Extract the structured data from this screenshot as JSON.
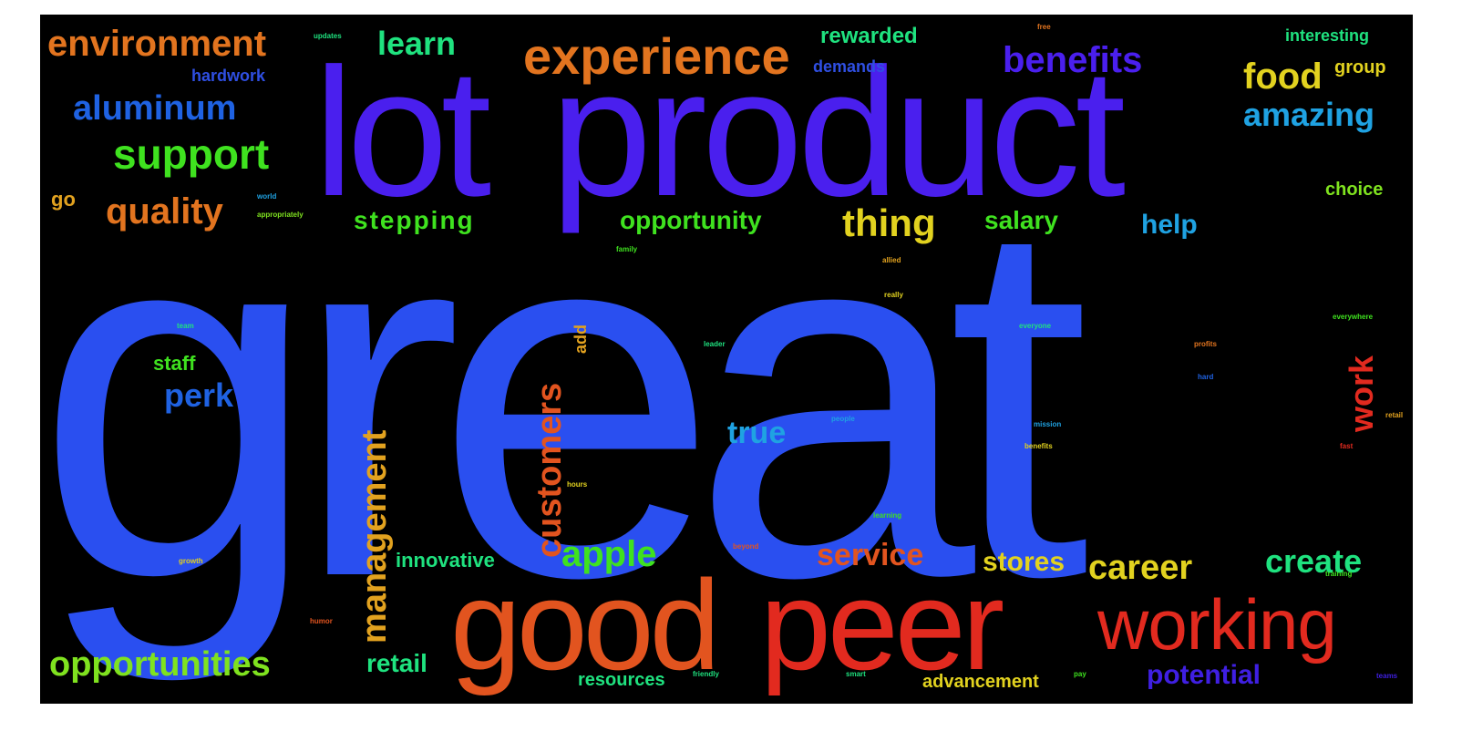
{
  "wordcloud": {
    "words": {
      "great": "great",
      "lot": "lot",
      "product": "product",
      "good": "good",
      "peer": "peer",
      "working": "working",
      "experience": "experience",
      "environment": "environment",
      "benefits": "benefits",
      "support": "support",
      "aluminum": "aluminum",
      "amazing": "amazing",
      "food": "food",
      "quality": "quality",
      "thing": "thing",
      "stepping": "stepping",
      "opportunity": "opportunity",
      "salary": "salary",
      "help": "help",
      "learn": "learn",
      "rewarded": "rewarded",
      "interesting": "interesting",
      "demands": "demands",
      "hardwork": "hardwork",
      "group": "group",
      "choice": "choice",
      "perk": "perk",
      "staff": "staff",
      "true": "true",
      "management": "management",
      "customers": "customers",
      "work": "work",
      "add": "add",
      "apple": "apple",
      "service": "service",
      "stores": "stores",
      "career": "career",
      "create": "create",
      "innovative": "innovative",
      "opportunities": "opportunities",
      "retail": "retail",
      "resources": "resources",
      "advancement": "advancement",
      "potential": "potential",
      "go": "go"
    },
    "small_words": [
      "updates",
      "world",
      "appropriately",
      "family",
      "allied",
      "really",
      "everyone",
      "everywhere",
      "profits",
      "hard",
      "fast",
      "leader",
      "team",
      "learning",
      "growth",
      "beyond",
      "humor",
      "hours",
      "free",
      "mission",
      "benefits",
      "people",
      "training",
      "friendly",
      "pay",
      "smart",
      "teams",
      "retail"
    ],
    "colors": {
      "great": "#2a4ff0",
      "purple_blue": "#4a1fee",
      "orange": "#e2541f",
      "red": "#e22a1f",
      "dark_orange": "#e2741f",
      "green": "#3fe21f",
      "light_green": "#7fe21f",
      "teal": "#1fe27f",
      "yellow": "#e2d21f",
      "gold": "#e2a21f",
      "blue": "#1f62e2",
      "sky": "#1fa2e2",
      "mid_blue": "#2f4fe2",
      "violet": "#3f1fe2"
    }
  }
}
